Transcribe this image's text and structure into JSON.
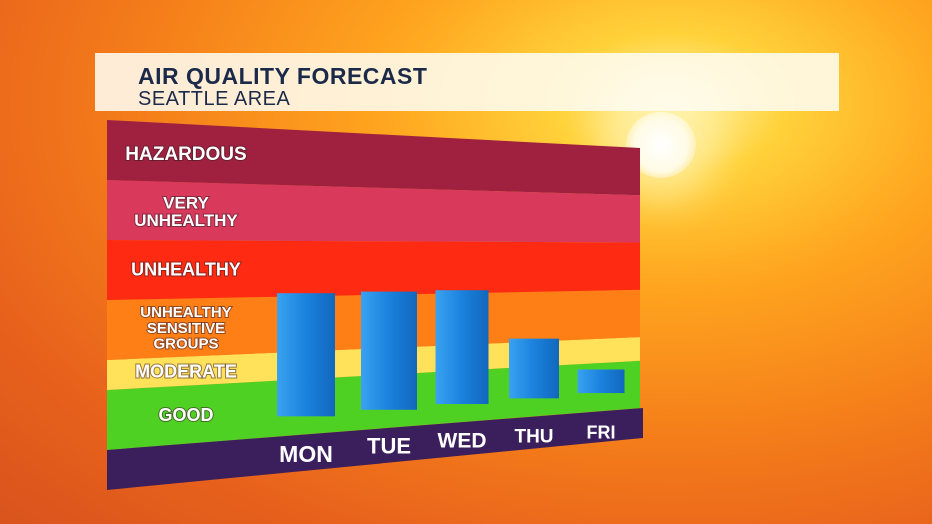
{
  "header": {
    "title": "AIR QUALITY FORECAST",
    "subtitle": "SEATTLE AREA"
  },
  "chart_data": {
    "type": "bar",
    "categories": [
      "MON",
      "TUE",
      "WED",
      "THU",
      "FRI"
    ],
    "values": [
      5,
      5,
      5,
      3,
      1.6
    ],
    "ylim": [
      0,
      12
    ],
    "bands": [
      {
        "label": "GOOD",
        "from": 0,
        "to": 2,
        "color": "#4fd124"
      },
      {
        "label": "MODERATE",
        "from": 2,
        "to": 3,
        "color": "#ffe15a"
      },
      {
        "label": "UNHEALTHY SENSITIVE GROUPS",
        "from": 3,
        "to": 5,
        "color": "#ff7f17"
      },
      {
        "label": "UNHEALTHY",
        "from": 5,
        "to": 7,
        "color": "#ff2a12"
      },
      {
        "label": "VERY UNHEALTHY",
        "from": 7,
        "to": 9,
        "color": "#d93a5c"
      },
      {
        "label": "HAZARDOUS",
        "from": 9,
        "to": 11,
        "color": "#a0213f"
      }
    ],
    "bar_color": "#1a82dd",
    "base_color": "#3a1f5c",
    "grid": false,
    "legend": "none"
  }
}
